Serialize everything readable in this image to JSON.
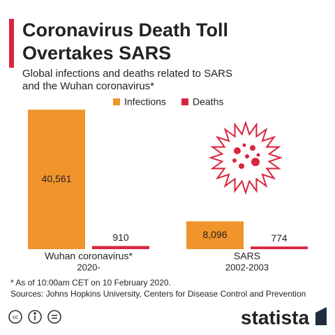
{
  "chart_data": {
    "type": "bar",
    "title": [
      "Coronavirus Death Toll",
      "Overtakes SARS"
    ],
    "subtitle": [
      "Global infections and deaths related to SARS",
      "and the Wuhan coronavirus*"
    ],
    "categories": [
      "Wuhan coronavirus*",
      "SARS"
    ],
    "category_notes": [
      "2020-",
      "2002-2003"
    ],
    "series": [
      {
        "name": "Infections",
        "color": "#f0942b",
        "values": [
          40561,
          8096
        ],
        "value_labels": [
          "40,561",
          "8,096"
        ]
      },
      {
        "name": "Deaths",
        "color": "#d7263d",
        "values": [
          910,
          774
        ],
        "value_labels": [
          "910",
          "774"
        ]
      }
    ],
    "ylim": [
      0,
      41000
    ],
    "note": "* As of 10:00am CET on 10 February 2020.",
    "source": "Sources: Johns Hopkins University, Centers for Disease Control and Prevention",
    "brand": "statista"
  }
}
